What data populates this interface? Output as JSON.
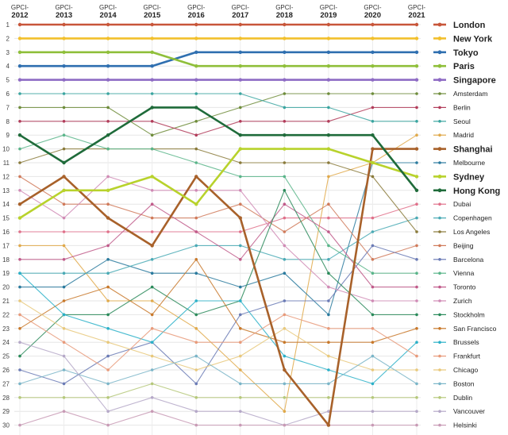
{
  "chart_data": {
    "type": "line",
    "x": [
      "2012",
      "2013",
      "2014",
      "2015",
      "2016",
      "2017",
      "2018",
      "2019",
      "2020",
      "2021"
    ],
    "x_prefix": "GPCI-",
    "rank_ticks": [
      1,
      2,
      3,
      4,
      5,
      6,
      7,
      8,
      9,
      10,
      11,
      12,
      13,
      14,
      15,
      16,
      17,
      18,
      19,
      20,
      21,
      22,
      23,
      24,
      25,
      26,
      27,
      28,
      29,
      30
    ],
    "y_axis": "rank (1 at top)",
    "series": [
      {
        "name": "London",
        "color": "#c8563a",
        "highlight": true,
        "values": [
          1,
          1,
          1,
          1,
          1,
          1,
          1,
          1,
          1,
          1
        ]
      },
      {
        "name": "New York",
        "color": "#f2c02c",
        "highlight": true,
        "values": [
          2,
          2,
          2,
          2,
          2,
          2,
          2,
          2,
          2,
          2
        ]
      },
      {
        "name": "Tokyo",
        "color": "#2f6fb0",
        "highlight": true,
        "values": [
          4,
          4,
          4,
          4,
          3,
          3,
          3,
          3,
          3,
          3
        ]
      },
      {
        "name": "Paris",
        "color": "#8fbf3a",
        "highlight": true,
        "values": [
          3,
          3,
          3,
          3,
          4,
          4,
          4,
          4,
          4,
          4
        ]
      },
      {
        "name": "Singapore",
        "color": "#8e6bc4",
        "highlight": true,
        "values": [
          5,
          5,
          5,
          5,
          5,
          5,
          5,
          5,
          5,
          5
        ]
      },
      {
        "name": "Amsterdam",
        "color": "#6e8c3a",
        "highlight": false,
        "values": [
          7,
          7,
          7,
          9,
          8,
          7,
          6,
          6,
          6,
          6
        ]
      },
      {
        "name": "Berlin",
        "color": "#b23c5a",
        "highlight": false,
        "values": [
          8,
          8,
          8,
          8,
          9,
          8,
          8,
          8,
          7,
          7
        ]
      },
      {
        "name": "Seoul",
        "color": "#3aa5a0",
        "highlight": false,
        "values": [
          6,
          6,
          6,
          6,
          6,
          6,
          7,
          7,
          8,
          8
        ]
      },
      {
        "name": "Madrid",
        "color": "#e0a94a",
        "highlight": false,
        "values": [
          17,
          17,
          21,
          21,
          23,
          26,
          29,
          12,
          11,
          9
        ]
      },
      {
        "name": "Shanghai",
        "color": "#a8612a",
        "highlight": true,
        "values": [
          14,
          12,
          15,
          17,
          12,
          15,
          26,
          30,
          10,
          10
        ]
      },
      {
        "name": "Melbourne",
        "color": "#2a7a9e",
        "highlight": false,
        "values": [
          20,
          20,
          18,
          19,
          19,
          20,
          19,
          22,
          11,
          11
        ]
      },
      {
        "name": "Sydney",
        "color": "#b8d22c",
        "highlight": true,
        "values": [
          15,
          13,
          13,
          12,
          14,
          10,
          10,
          10,
          11,
          12
        ]
      },
      {
        "name": "Hong Kong",
        "color": "#1f6b3a",
        "highlight": true,
        "values": [
          9,
          11,
          9,
          7,
          7,
          9,
          9,
          9,
          9,
          13
        ]
      },
      {
        "name": "Dubai",
        "color": "#e0708a",
        "highlight": false,
        "values": [
          16,
          16,
          16,
          16,
          16,
          16,
          15,
          15,
          15,
          14
        ]
      },
      {
        "name": "Copenhagen",
        "color": "#4aaab5",
        "highlight": false,
        "values": [
          19,
          19,
          19,
          18,
          17,
          17,
          18,
          18,
          16,
          15
        ]
      },
      {
        "name": "Los Angeles",
        "color": "#8a7a3a",
        "highlight": false,
        "values": [
          11,
          10,
          10,
          10,
          10,
          11,
          11,
          11,
          12,
          16
        ]
      },
      {
        "name": "Beijing",
        "color": "#d07a5a",
        "highlight": false,
        "values": [
          12,
          14,
          14,
          15,
          15,
          14,
          16,
          14,
          18,
          17
        ]
      },
      {
        "name": "Barcelona",
        "color": "#6a7ab5",
        "highlight": false,
        "values": [
          26,
          27,
          25,
          24,
          27,
          22,
          21,
          21,
          17,
          18
        ]
      },
      {
        "name": "Vienna",
        "color": "#5ab58a",
        "highlight": false,
        "values": [
          10,
          9,
          10,
          10,
          11,
          12,
          12,
          17,
          19,
          19
        ]
      },
      {
        "name": "Toronto",
        "color": "#c05a8a",
        "highlight": false,
        "values": [
          18,
          18,
          17,
          14,
          16,
          18,
          14,
          16,
          20,
          20
        ]
      },
      {
        "name": "Zurich",
        "color": "#d08ab5",
        "highlight": false,
        "values": [
          13,
          15,
          12,
          13,
          13,
          13,
          17,
          20,
          21,
          21
        ]
      },
      {
        "name": "Stockholm",
        "color": "#2a8a5a",
        "highlight": false,
        "values": [
          25,
          22,
          22,
          20,
          22,
          21,
          13,
          19,
          22,
          22
        ]
      },
      {
        "name": "San Francisco",
        "color": "#c8782a",
        "highlight": false,
        "values": [
          23,
          21,
          20,
          22,
          18,
          23,
          24,
          24,
          24,
          23
        ]
      },
      {
        "name": "Brussels",
        "color": "#2ab0c8",
        "highlight": false,
        "values": [
          19,
          22,
          23,
          24,
          21,
          21,
          25,
          26,
          27,
          24
        ]
      },
      {
        "name": "Frankfurt",
        "color": "#e89a7a",
        "highlight": false,
        "values": [
          22,
          24,
          26,
          23,
          24,
          24,
          22,
          23,
          23,
          25
        ]
      },
      {
        "name": "Chicago",
        "color": "#e8c87a",
        "highlight": false,
        "values": [
          21,
          23,
          24,
          25,
          26,
          25,
          23,
          25,
          26,
          26
        ]
      },
      {
        "name": "Boston",
        "color": "#7ab5c8",
        "highlight": false,
        "values": [
          27,
          26,
          27,
          26,
          25,
          27,
          27,
          27,
          25,
          27
        ]
      },
      {
        "name": "Dublin",
        "color": "#b5c87a",
        "highlight": false,
        "values": [
          28,
          28,
          28,
          27,
          28,
          28,
          28,
          28,
          28,
          28
        ]
      },
      {
        "name": "Vancouver",
        "color": "#b5a8c8",
        "highlight": false,
        "values": [
          24,
          25,
          29,
          28,
          29,
          29,
          30,
          29,
          29,
          29
        ]
      },
      {
        "name": "Helsinki",
        "color": "#c89ab5",
        "highlight": false,
        "values": [
          30,
          29,
          30,
          29,
          30,
          30,
          30,
          30,
          30,
          30
        ]
      }
    ]
  }
}
